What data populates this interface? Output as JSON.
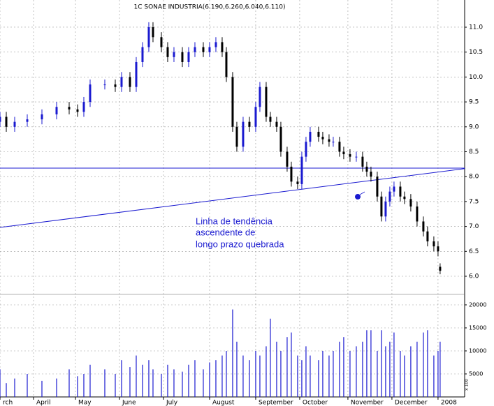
{
  "chart_data": {
    "type": "candlestick",
    "title": "1C SONAE INDUSTRIA(6.190,6.260,6.040,6.110)",
    "x": [
      0,
      3,
      7,
      13,
      20,
      27,
      33,
      37,
      40,
      43,
      50,
      55,
      58,
      62,
      65,
      68,
      71,
      73,
      77,
      80,
      83,
      87,
      90,
      93,
      97,
      100,
      103,
      106,
      108,
      111,
      113,
      116,
      119,
      122,
      124,
      127,
      129,
      132,
      134,
      137,
      139,
      142,
      144,
      146,
      148,
      152,
      154,
      157,
      159,
      162,
      164,
      167,
      170,
      173,
      175,
      177,
      180,
      182,
      184,
      186,
      188,
      191,
      193,
      196,
      199,
      202,
      204,
      207,
      209,
      210
    ],
    "open": [
      9.1,
      9.2,
      9.0,
      9.1,
      9.15,
      9.25,
      9.4,
      9.35,
      9.3,
      9.5,
      9.85,
      9.85,
      9.8,
      10.0,
      9.8,
      10.3,
      10.6,
      11.0,
      10.8,
      10.6,
      10.4,
      10.5,
      10.3,
      10.5,
      10.6,
      10.5,
      10.6,
      10.7,
      10.5,
      10.0,
      9.0,
      8.6,
      9.1,
      9.0,
      9.4,
      9.8,
      9.2,
      9.1,
      9.0,
      8.5,
      8.2,
      7.9,
      7.85,
      8.4,
      8.7,
      8.9,
      8.8,
      8.75,
      8.7,
      8.7,
      8.5,
      8.45,
      8.4,
      8.4,
      8.2,
      8.1,
      8.0,
      7.6,
      7.2,
      7.5,
      7.7,
      7.8,
      7.6,
      7.55,
      7.4,
      7.1,
      6.9,
      6.7,
      6.6,
      6.19
    ],
    "high": [
      9.3,
      9.3,
      9.2,
      9.25,
      9.35,
      9.5,
      9.5,
      9.45,
      9.6,
      9.95,
      9.95,
      9.95,
      10.1,
      10.1,
      10.4,
      10.7,
      11.1,
      11.1,
      10.9,
      10.7,
      10.6,
      10.6,
      10.6,
      10.7,
      10.7,
      10.7,
      10.8,
      10.8,
      10.6,
      10.1,
      9.1,
      9.2,
      9.2,
      9.5,
      9.9,
      9.9,
      9.3,
      9.2,
      9.1,
      8.6,
      8.3,
      8.0,
      8.5,
      8.8,
      9.0,
      9.0,
      8.9,
      8.85,
      8.8,
      8.8,
      8.6,
      8.55,
      8.5,
      8.5,
      8.3,
      8.2,
      8.1,
      7.7,
      7.6,
      7.8,
      7.9,
      7.9,
      7.7,
      7.65,
      7.5,
      7.2,
      7.0,
      6.8,
      6.7,
      6.26
    ],
    "low": [
      9.0,
      8.9,
      8.9,
      9.0,
      9.05,
      9.15,
      9.25,
      9.2,
      9.2,
      9.4,
      9.75,
      9.7,
      9.7,
      9.7,
      9.7,
      10.2,
      10.5,
      10.7,
      10.5,
      10.3,
      10.3,
      10.2,
      10.2,
      10.4,
      10.4,
      10.4,
      10.5,
      10.4,
      9.9,
      8.9,
      8.5,
      8.5,
      8.9,
      8.9,
      9.3,
      9.1,
      9.0,
      8.9,
      8.4,
      8.1,
      7.8,
      7.75,
      7.75,
      8.3,
      8.6,
      8.7,
      8.65,
      8.6,
      8.6,
      8.4,
      8.35,
      8.3,
      8.3,
      8.1,
      8.0,
      7.9,
      7.5,
      7.1,
      7.1,
      7.4,
      7.6,
      7.5,
      7.45,
      7.3,
      7.0,
      6.8,
      6.6,
      6.5,
      6.4,
      6.04
    ],
    "close": [
      9.2,
      9.0,
      9.1,
      9.15,
      9.25,
      9.4,
      9.35,
      9.3,
      9.5,
      9.85,
      9.85,
      9.8,
      10.0,
      9.8,
      10.3,
      10.6,
      11.0,
      10.8,
      10.6,
      10.4,
      10.5,
      10.3,
      10.5,
      10.6,
      10.5,
      10.6,
      10.7,
      10.5,
      10.0,
      9.0,
      8.6,
      9.1,
      9.0,
      9.4,
      9.8,
      9.2,
      9.1,
      9.0,
      8.5,
      8.2,
      7.9,
      7.85,
      8.4,
      8.7,
      8.9,
      8.8,
      8.75,
      8.7,
      8.7,
      8.5,
      8.45,
      8.4,
      8.4,
      8.2,
      8.1,
      8.0,
      7.6,
      7.2,
      7.5,
      7.7,
      7.8,
      7.6,
      7.55,
      7.4,
      7.1,
      6.9,
      6.7,
      6.6,
      6.5,
      6.11
    ],
    "volume": [
      6000,
      3000,
      4000,
      5000,
      3500,
      4000,
      6000,
      4500,
      5000,
      7000,
      6000,
      5000,
      8000,
      6500,
      9000,
      7000,
      8000,
      6000,
      5000,
      7000,
      6000,
      5500,
      7000,
      8000,
      6000,
      7500,
      8000,
      9000,
      10000,
      19000,
      12000,
      9000,
      8000,
      10000,
      9000,
      11000,
      17000,
      12000,
      10000,
      13000,
      14000,
      9000,
      8000,
      11000,
      9000,
      8000,
      10000,
      9000,
      10000,
      12000,
      13000,
      10000,
      11000,
      12000,
      14500,
      14500,
      10000,
      14500,
      11000,
      12000,
      14000,
      10000,
      9000,
      11000,
      12000,
      14000,
      14500,
      9000,
      10000,
      12000
    ],
    "up_color": "#1a1ad0",
    "down_color": "#000000",
    "volume_color": "#1a1ad0",
    "xlim": [
      0,
      221.7
    ],
    "xticks": [
      {
        "value": 0,
        "label": "rch"
      },
      {
        "value": 16,
        "label": "April"
      },
      {
        "value": 36,
        "label": "May"
      },
      {
        "value": 57,
        "label": "June"
      },
      {
        "value": 78,
        "label": "July"
      },
      {
        "value": 100,
        "label": "August"
      },
      {
        "value": 122,
        "label": "September"
      },
      {
        "value": 143,
        "label": "October"
      },
      {
        "value": 166,
        "label": "November"
      },
      {
        "value": 187,
        "label": "December"
      },
      {
        "value": 209,
        "label": "2008"
      }
    ],
    "ylim": [
      5.664,
      11.546
    ],
    "yticks": [
      {
        "value": 6,
        "label": "6.0"
      },
      6.5,
      {
        "value": 7,
        "label": "7.0"
      },
      7.5,
      {
        "value": 8,
        "label": "8.0"
      },
      8.5,
      {
        "value": 9,
        "label": "9.0"
      },
      9.5,
      {
        "value": 10,
        "label": "10.0"
      },
      10.5,
      {
        "value": 11,
        "label": "11.0"
      }
    ],
    "volume_lim": [
      0,
      21818
    ],
    "volume_ticks": [
      5000,
      10000,
      15000,
      20000
    ],
    "volume_axis_note": "x 100",
    "grid": true,
    "trendlines": [
      {
        "color": "#1a1ad0",
        "x": [
          0,
          221.7
        ],
        "values": [
          8.17,
          8.17
        ]
      },
      {
        "color": "#1a1ad0",
        "x": [
          0,
          221.7
        ],
        "values": [
          6.98,
          8.16
        ]
      }
    ],
    "annotation": [
      "Linha de tendência",
      "ascendente de",
      "longo prazo quebrada"
    ]
  }
}
